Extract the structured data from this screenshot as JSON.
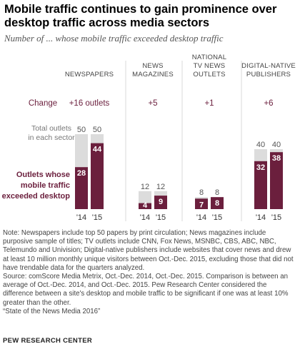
{
  "title": "Mobile traffic continues to gain prominence over desktop traffic across media sectors",
  "subtitle": "Number of ... whose mobile traffic exceeded desktop traffic",
  "change_label": "Change",
  "total_label": "Total outlets in each sector",
  "mobile_label": "Outlets whose mobile traffic exceeded desktop",
  "colors": {
    "total": "#dcdcdc",
    "mobile": "#6b1f3d",
    "change_text": "#6b1f3d"
  },
  "chart_data": {
    "type": "bar",
    "x": [
      "'14",
      "'15"
    ],
    "ylim": [
      0,
      50
    ],
    "series": [
      {
        "name": "Total outlets in each sector",
        "role": "total"
      },
      {
        "name": "Outlets whose mobile traffic exceeded desktop",
        "role": "mobile"
      }
    ],
    "sectors": [
      {
        "name": "NEWSPAPERS",
        "change": "+16 outlets",
        "total": [
          50,
          50
        ],
        "mobile": [
          28,
          44
        ]
      },
      {
        "name": "NEWS MAGAZINES",
        "change": "+5",
        "total": [
          12,
          12
        ],
        "mobile": [
          4,
          9
        ]
      },
      {
        "name": "NATIONAL TV NEWS OUTLETS",
        "change": "+1",
        "total": [
          8,
          8
        ],
        "mobile": [
          7,
          8
        ]
      },
      {
        "name": "DIGITAL-NATIVE PUBLISHERS",
        "change": "+6",
        "total": [
          40,
          40
        ],
        "mobile": [
          32,
          38
        ]
      }
    ]
  },
  "notes": [
    "Note: Newspapers include top 50 papers by print circulation; News magazines include purposive sample of titles; TV outlets include CNN, Fox News, MSNBC, CBS, ABC, NBC, Telemundo and Univision; Digital-native publishers include websites that cover news and drew at least 10 million monthly unique visitors between Oct.-Dec. 2015, excluding those that did not have trendable data for the quarters analyzed.",
    "Source: comScore Media Metrix, Oct.-Dec. 2014, Oct.-Dec. 2015. Comparison is between an average of Oct.-Dec. 2014, and Oct.-Dec. 2015. Pew Research Center considered the difference between a site's desktop and mobile traffic to be significant if one was at least 10% greater than the other.",
    "“State of the News Media 2016”"
  ],
  "footer": "PEW RESEARCH CENTER"
}
